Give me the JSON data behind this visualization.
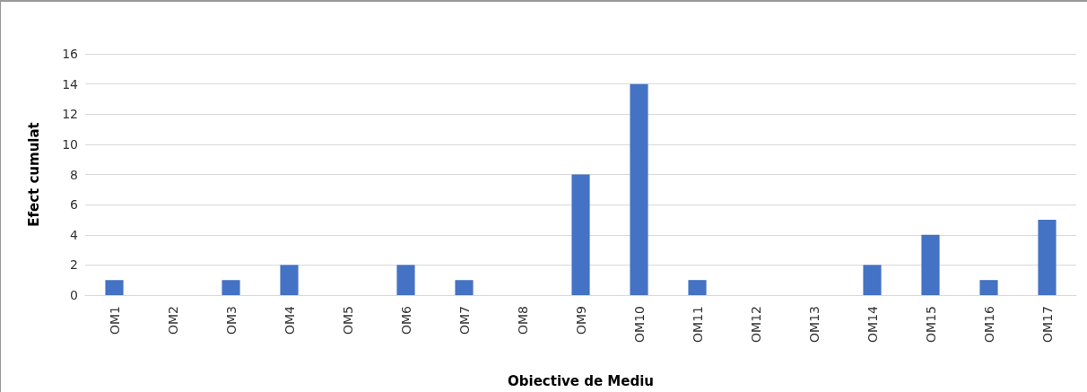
{
  "chart_data": {
    "type": "bar",
    "xlabel": "Obiective de Mediu",
    "ylabel": "Efect cumulat",
    "categories": [
      "OM1",
      "OM2",
      "OM3",
      "OM4",
      "OM5",
      "OM6",
      "OM7",
      "OM8",
      "OM9",
      "OM10",
      "OM11",
      "OM12",
      "OM13",
      "OM14",
      "OM15",
      "OM16",
      "OM17"
    ],
    "values": [
      1,
      0,
      1,
      2,
      0,
      2,
      1,
      0,
      8,
      14,
      1,
      0,
      0,
      2,
      4,
      1,
      5
    ],
    "color": "#4472c4",
    "ylim": [
      0,
      16
    ],
    "yticks": [
      0,
      2,
      4,
      6,
      8,
      10,
      12,
      14,
      16
    ],
    "grid": "y"
  }
}
